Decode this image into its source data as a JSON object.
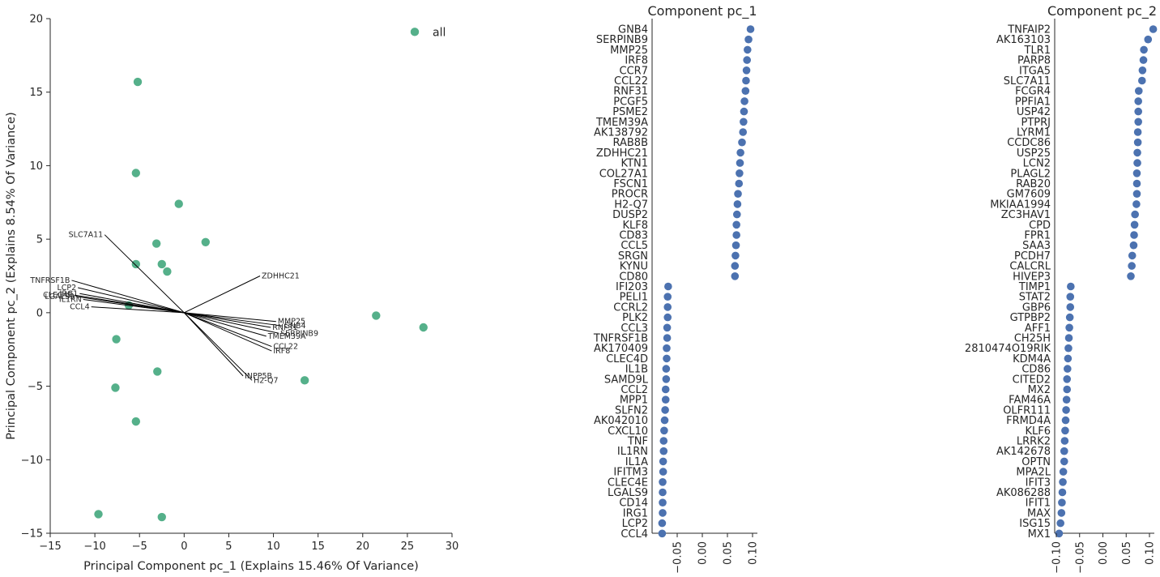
{
  "chart_data": [
    {
      "type": "scatter",
      "kind": "pca-biplot",
      "xlabel": "Principal Component pc_1 (Explains 15.46% Of Variance)",
      "ylabel": "Principal Component pc_2 (Explains 8.54% Of Variance)",
      "xlim": [
        -15,
        30
      ],
      "ylim": [
        -15,
        20
      ],
      "xticks": [
        -15,
        -10,
        -5,
        0,
        5,
        10,
        15,
        20,
        25,
        30
      ],
      "yticks": [
        -15,
        -10,
        -5,
        0,
        5,
        10,
        15,
        20
      ],
      "color": "#55b08a",
      "legend": {
        "label": "all",
        "position": "top-right"
      },
      "series": [
        {
          "name": "all",
          "x": [
            -5.2,
            -5.4,
            -0.6,
            -3.1,
            2.4,
            -5.4,
            -2.5,
            -1.9,
            -6.2,
            21.5,
            26.8,
            -7.6,
            -3.0,
            13.5,
            -7.7,
            -5.4,
            -9.6,
            -2.5
          ],
          "y": [
            15.7,
            9.5,
            7.4,
            4.7,
            4.8,
            3.3,
            3.3,
            2.8,
            0.5,
            -0.2,
            -1.0,
            -1.8,
            -4.0,
            -4.6,
            -5.1,
            -7.4,
            -13.7,
            -13.9
          ]
        }
      ],
      "loadings": [
        {
          "label": "SLC7A11",
          "x": -8.9,
          "y": 5.3
        },
        {
          "label": "TNFRSF1B",
          "x": -12.6,
          "y": 2.2
        },
        {
          "label": "ZDHHC21",
          "x": 8.5,
          "y": 2.5
        },
        {
          "label": "LCP2",
          "x": -11.9,
          "y": 1.7
        },
        {
          "label": "IRG1",
          "x": -11.7,
          "y": 1.3
        },
        {
          "label": "CLEC4E",
          "x": -12.3,
          "y": 1.2
        },
        {
          "label": "LGALS9",
          "x": -12.1,
          "y": 1.1
        },
        {
          "label": "IL1RN",
          "x": -11.3,
          "y": 0.9
        },
        {
          "label": "CCL4",
          "x": -10.4,
          "y": 0.4
        },
        {
          "label": "MMP25",
          "x": 10.3,
          "y": -0.6
        },
        {
          "label": "GNB4",
          "x": 11.0,
          "y": -0.9
        },
        {
          "label": "RNF31",
          "x": 9.7,
          "y": -1.0
        },
        {
          "label": "SERPINB9",
          "x": 10.6,
          "y": -1.4
        },
        {
          "label": "TMEM39A",
          "x": 9.2,
          "y": -1.6
        },
        {
          "label": "CCL22",
          "x": 9.8,
          "y": -2.3
        },
        {
          "label": "IRF8",
          "x": 9.8,
          "y": -2.6
        },
        {
          "label": "INPP5B",
          "x": 6.6,
          "y": -4.3
        },
        {
          "label": "H2-Q7",
          "x": 7.6,
          "y": -4.6
        }
      ]
    },
    {
      "type": "scatter",
      "kind": "dot-plot",
      "title": "Component pc_1",
      "xlim": [
        -0.1,
        0.1
      ],
      "xticks": [
        -0.05,
        0.0,
        0.05,
        0.1
      ],
      "xticklabels": [
        "-0.05",
        "0.00",
        "0.05",
        "0.10"
      ],
      "color": "#4c72b0",
      "categories": [
        "GNB4",
        "SERPINB9",
        "MMP25",
        "IRF8",
        "CCR7",
        "CCL22",
        "RNF31",
        "PCGF5",
        "PSME2",
        "TMEM39A",
        "AK138792",
        "RAB8B",
        "ZDHHC21",
        "KTN1",
        "COL27A1",
        "FSCN1",
        "PROCR",
        "H2-Q7",
        "DUSP2",
        "KLF8",
        "CD83",
        "CCL5",
        "SRGN",
        "KYNU",
        "CD80",
        "IFI203",
        "PELI1",
        "CCRL2",
        "PLK2",
        "CCL3",
        "TNFRSF1B",
        "AK170409",
        "CLEC4D",
        "IL1B",
        "SAMD9L",
        "CCL2",
        "MPP1",
        "SLFN2",
        "AK042010",
        "CXCL10",
        "TNF",
        "IL1RN",
        "IL1A",
        "IFITM3",
        "CLEC4E",
        "LGALS9",
        "CD14",
        "IRG1",
        "LCP2",
        "CCL4"
      ],
      "values": [
        0.096,
        0.092,
        0.09,
        0.089,
        0.088,
        0.087,
        0.086,
        0.084,
        0.083,
        0.082,
        0.081,
        0.079,
        0.076,
        0.075,
        0.074,
        0.073,
        0.071,
        0.07,
        0.069,
        0.068,
        0.068,
        0.067,
        0.066,
        0.065,
        0.065,
        -0.068,
        -0.069,
        -0.069,
        -0.069,
        -0.07,
        -0.07,
        -0.071,
        -0.071,
        -0.072,
        -0.072,
        -0.073,
        -0.073,
        -0.074,
        -0.075,
        -0.076,
        -0.077,
        -0.077,
        -0.078,
        -0.078,
        -0.079,
        -0.079,
        -0.079,
        -0.079,
        -0.08,
        -0.08
      ]
    },
    {
      "type": "scatter",
      "kind": "dot-plot",
      "title": "Component pc_2",
      "xlim": [
        -0.11,
        0.11
      ],
      "xticks": [
        -0.1,
        -0.05,
        0.0,
        0.05,
        0.1
      ],
      "xticklabels": [
        "-0.10",
        "-0.05",
        "0.00",
        "0.05",
        "0.10"
      ],
      "color": "#4c72b0",
      "categories": [
        "TNFAIP2",
        "AK163103",
        "TLR1",
        "PARP8",
        "ITGA5",
        "SLC7A11",
        "FCGR4",
        "PPFIA1",
        "USP42",
        "PTPRJ",
        "LYRM1",
        "CCDC86",
        "USP25",
        "LCN2",
        "PLAGL2",
        "RAB20",
        "GM7609",
        "MKIAA1994",
        "ZC3HAV1",
        "CPD",
        "FPR1",
        "SAA3",
        "PCDH7",
        "CALCRL",
        "HIVEP3",
        "TIMP1",
        "STAT2",
        "GBP6",
        "GTPBP2",
        "AFF1",
        "CH25H",
        "2810474O19RIK",
        "KDM4A",
        "CD86",
        "CITED2",
        "MX2",
        "FAM46A",
        "OLFR111",
        "FRMD4A",
        "KLF6",
        "LRRK2",
        "AK142678",
        "OPTN",
        "MPA2L",
        "IFIT3",
        "AK086288",
        "IFIT1",
        "MAX",
        "ISG15",
        "MX1"
      ],
      "values": [
        0.108,
        0.097,
        0.088,
        0.087,
        0.085,
        0.084,
        0.077,
        0.076,
        0.076,
        0.076,
        0.075,
        0.075,
        0.074,
        0.074,
        0.073,
        0.073,
        0.073,
        0.072,
        0.069,
        0.068,
        0.067,
        0.066,
        0.063,
        0.062,
        0.06,
        -0.069,
        -0.07,
        -0.07,
        -0.071,
        -0.072,
        -0.073,
        -0.074,
        -0.075,
        -0.076,
        -0.077,
        -0.077,
        -0.078,
        -0.079,
        -0.08,
        -0.081,
        -0.082,
        -0.083,
        -0.083,
        -0.085,
        -0.086,
        -0.087,
        -0.088,
        -0.089,
        -0.091,
        -0.094
      ]
    }
  ]
}
